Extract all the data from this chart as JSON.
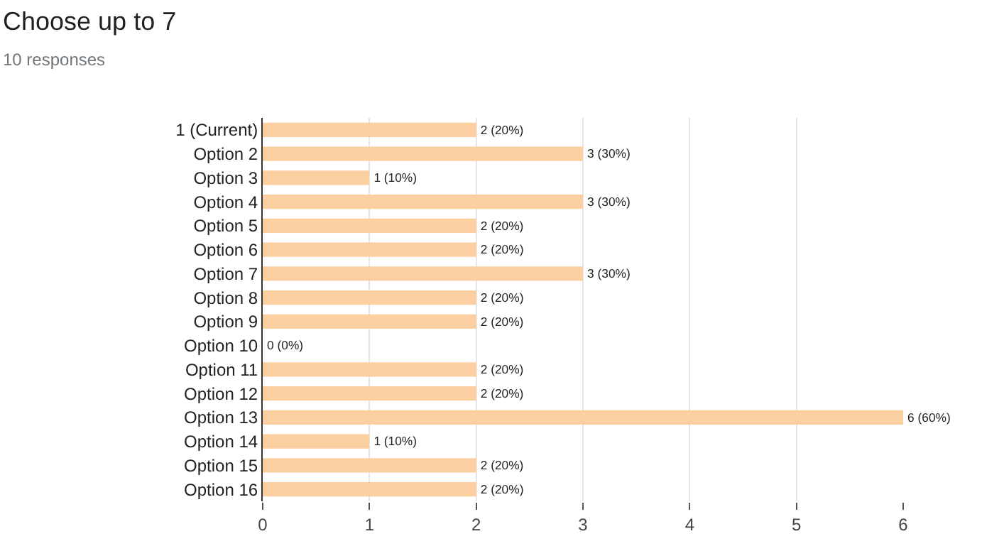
{
  "chart_data": {
    "type": "bar",
    "orientation": "horizontal",
    "title": "Choose up to 7",
    "subtitle": "10 responses",
    "categories": [
      "1 (Current)",
      "Option 2",
      "Option 3",
      "Option 4",
      "Option 5",
      "Option 6",
      "Option 7",
      "Option 8",
      "Option 9",
      "Option 10",
      "Option 11",
      "Option 12",
      "Option 13",
      "Option 14",
      "Option 15",
      "Option 16"
    ],
    "values": [
      2,
      3,
      1,
      3,
      2,
      2,
      3,
      2,
      2,
      0,
      2,
      2,
      6,
      1,
      2,
      2
    ],
    "value_labels": [
      "2 (20%)",
      "3 (30%)",
      "1 (10%)",
      "3 (30%)",
      "2 (20%)",
      "2 (20%)",
      "3 (30%)",
      "2 (20%)",
      "2 (20%)",
      "0 (0%)",
      "2 (20%)",
      "2 (20%)",
      "6 (60%)",
      "1 (10%)",
      "2 (20%)",
      "2 (20%)"
    ],
    "color": "#fccfa1",
    "xlim": [
      0,
      6
    ],
    "xticks": [
      0,
      1,
      2,
      3,
      4,
      5,
      6
    ],
    "grid": "x",
    "legend": false
  }
}
